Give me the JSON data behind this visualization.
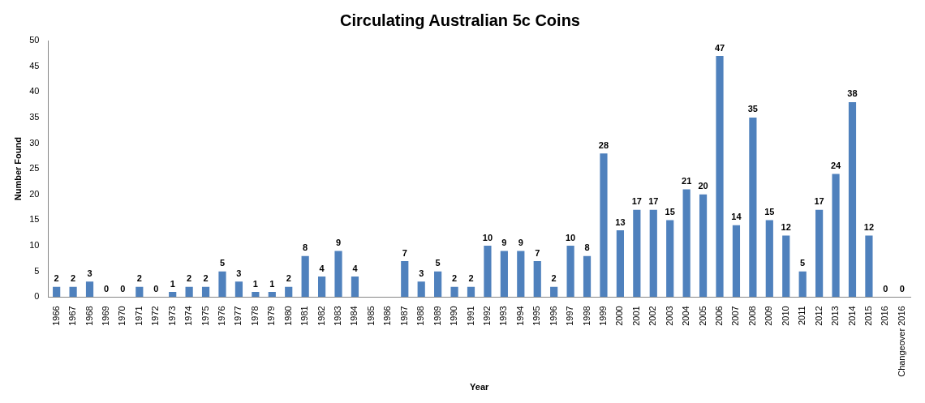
{
  "chart_data": {
    "type": "bar",
    "title": "Circulating Australian 5c Coins",
    "xlabel": "Year",
    "ylabel": "Number Found",
    "categories": [
      "1966",
      "1967",
      "1968",
      "1969",
      "1970",
      "1971",
      "1972",
      "1973",
      "1974",
      "1975",
      "1976",
      "1977",
      "1978",
      "1979",
      "1980",
      "1981",
      "1982",
      "1983",
      "1984",
      "1985",
      "1986",
      "1987",
      "1988",
      "1989",
      "1990",
      "1991",
      "1992",
      "1993",
      "1994",
      "1995",
      "1996",
      "1997",
      "1998",
      "1999",
      "2000",
      "2001",
      "2002",
      "2003",
      "2004",
      "2005",
      "2006",
      "2007",
      "2008",
      "2009",
      "2010",
      "2011",
      "2012",
      "2013",
      "2014",
      "2015",
      "2016",
      "Changeover 2016"
    ],
    "values": [
      2,
      2,
      3,
      0,
      0,
      2,
      0,
      1,
      2,
      2,
      5,
      3,
      1,
      1,
      2,
      8,
      4,
      9,
      4,
      null,
      null,
      7,
      3,
      5,
      2,
      2,
      10,
      9,
      9,
      7,
      2,
      10,
      8,
      28,
      13,
      17,
      17,
      15,
      21,
      20,
      47,
      14,
      35,
      15,
      12,
      5,
      17,
      24,
      38,
      12,
      0,
      0
    ],
    "color": "#4f81bd",
    "ylim": [
      0,
      50
    ],
    "yticks": [
      0,
      5,
      10,
      15,
      20,
      25,
      30,
      35,
      40,
      45,
      50
    ],
    "grid": false,
    "legend": false,
    "data_labels": true
  }
}
